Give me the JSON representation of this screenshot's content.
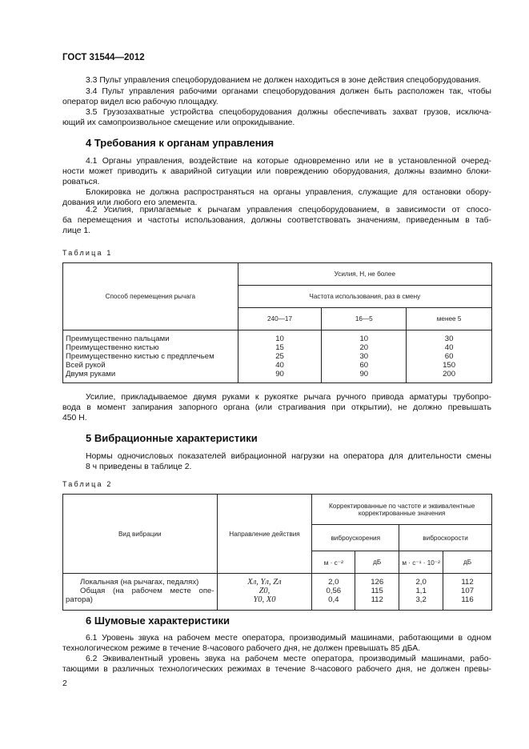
{
  "header": "ГОСТ 31544—2012",
  "blocks": [
    {
      "top": 94,
      "lines": [
        {
          "t": "3.3 Пульт управления спецоборудованием не должен находиться в зоне действия спецоборудования.",
          "ind": true,
          "j": false
        }
      ]
    },
    {
      "top": 108,
      "lines": [
        {
          "t": "3.4 Пульт управления рабочими органами спецоборудования должен быть расположен так, чтобы",
          "ind": true,
          "j": true
        },
        {
          "t": "оператор видел всю рабочую площадку.",
          "j": false
        }
      ]
    },
    {
      "top": 134,
      "lines": [
        {
          "t": "3.5 Грузозахватные устройства спецоборудования должны обеспечивать захват грузов, исключа-",
          "ind": true,
          "j": true
        },
        {
          "t": "ющий их самопроизвольное смещение или опрокидывание.",
          "j": false
        }
      ]
    },
    {
      "top": 195,
      "lines": [
        {
          "t": "4.1 Органы управления, воздействие на которые одновременно или не в установленной очеред-",
          "ind": true,
          "j": true
        },
        {
          "t": "ности может приводить к аварийной ситуации или повреждению оборудования, должны взаимно блоки-",
          "j": true
        },
        {
          "t": "роваться.",
          "j": false
        }
      ]
    },
    {
      "top": 234,
      "lines": [
        {
          "t": "Блокировка не должна распространяться на органы управления, служащие для остановки обору-",
          "ind": true,
          "j": true
        },
        {
          "t": "дования или любого его элемента.",
          "j": false
        }
      ]
    },
    {
      "top": 256,
      "lines": [
        {
          "t": "4.2 Усилия, прилагаемые к рычагам управления спецоборудованием, в зависимости от спосо-",
          "ind": true,
          "j": true
        },
        {
          "t": "ба перемещения и частоты использования, должны соответствовать значениям, приведенным в таб-",
          "j": true
        },
        {
          "t": "лице 1.",
          "j": false
        }
      ]
    },
    {
      "top": 490,
      "lines": [
        {
          "t": "Усилие, прикладываемое двумя руками к рукоятке рычага ручного привода арматуры трубопро-",
          "ind": true,
          "j": true
        },
        {
          "t": "вода в момент запирания запорного органа (или страгивания при открытии), не должно превышать",
          "j": true
        },
        {
          "t": "450 Н.",
          "j": false
        }
      ]
    },
    {
      "top": 564,
      "lines": [
        {
          "t": "Нормы одночисловых показателей вибрационной нагрузки на оператора для длительности смены",
          "ind": true,
          "j": true
        },
        {
          "t": "8 ч приведены в таблице 2.",
          "ind": true,
          "j": false
        }
      ]
    },
    {
      "top": 791,
      "lines": [
        {
          "t": "6.1 Уровень звука на рабочем месте оператора, производимый машинами, работающими в одном",
          "ind": true,
          "j": true
        },
        {
          "t": "технологическом режиме в течение 8-часового рабочего дня, не должен превышать 85 дБА.",
          "j": false
        }
      ]
    },
    {
      "top": 817,
      "lines": [
        {
          "t": "6.2 Эквивалентный уровень звука на рабочем месте оператора, производимый машинами, рабо-",
          "ind": true,
          "j": true
        },
        {
          "t": "тающими в различных технологических режимах в течение 8-часового рабочего дня, не должен превы-",
          "j": true
        }
      ]
    }
  ],
  "headings": {
    "s4": "4 Требования к органам управления",
    "s5": "5 Вибрационные характеристики",
    "s6": "6 Шумовые характеристики"
  },
  "table1": {
    "caption": "Таблица 1",
    "col0": "Способ перемещения рычага",
    "h1": "Усилия, Н, не более",
    "h2": "Частота использования, раз в смену",
    "freq": [
      "240—17",
      "16—5",
      "менее 5"
    ],
    "rows": [
      [
        "Преимущественно пальцами",
        "10",
        "10",
        "30"
      ],
      [
        "Преимущественно кистью",
        "15",
        "20",
        "40"
      ],
      [
        "Преимущественно кистью с предплечьем",
        "25",
        "30",
        "60"
      ],
      [
        "Всей рукой",
        "40",
        "60",
        "150"
      ],
      [
        "Двумя руками",
        "90",
        "90",
        "200"
      ]
    ]
  },
  "table2": {
    "caption": "Таблица 2",
    "col0": "Вид вибрации",
    "col1": "Направление действия",
    "h1": "Корректированные по частоте и эквивалентные корректированные значения",
    "accel": "виброускорения",
    "vel": "виброскорости",
    "units": [
      "м · с⁻²",
      "дБ",
      "м · с⁻¹ · 10⁻²",
      "дБ"
    ],
    "kinds": [
      "Локальная (на рычагах, педалях)",
      "Общая (на рабочем месте опе-",
      "ратора)"
    ],
    "directions": [
      "Xл, Yл, Zл",
      "Z0,",
      "Y0, X0"
    ],
    "accel_ms2": [
      "2,0",
      "0,56",
      "0,4"
    ],
    "accel_db": [
      "126",
      "115",
      "112"
    ],
    "vel_ms": [
      "2,0",
      "1,1",
      "3,2"
    ],
    "vel_db": [
      "112",
      "107",
      "116"
    ]
  },
  "page_number": "2"
}
